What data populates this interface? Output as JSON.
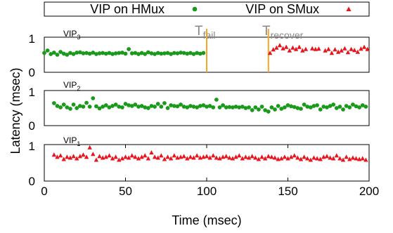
{
  "chart_data": {
    "type": "scatter",
    "xlabel": "Time (msec)",
    "ylabel": "Latency (msec)",
    "xlim": [
      0,
      200
    ],
    "ylim": [
      0,
      1
    ],
    "x_ticks": [
      "0",
      "50",
      "100",
      "150",
      "200"
    ],
    "y_ticks": [
      "0",
      "1"
    ],
    "legend": {
      "placement": "top",
      "entries": [
        {
          "label": "VIP on HMux",
          "marker": "circle",
          "color": "#1a9a1a"
        },
        {
          "label": "VIP on SMux",
          "marker": "triangle",
          "color": "#e8141e"
        }
      ]
    },
    "markers": {
      "t_fail": {
        "base": "T",
        "sub": "fail",
        "x": 100,
        "color": "#f5a623"
      },
      "t_recover": {
        "base": "T",
        "sub": "recover",
        "x": 138,
        "color": "#f5a623"
      }
    },
    "panels": [
      {
        "name_base": "VIP",
        "name_sub": "3",
        "series": [
          {
            "name": "VIP on HMux",
            "marker": "circle",
            "x": [
              0,
              2,
              4,
              6,
              8,
              10,
              12,
              14,
              16,
              18,
              20,
              22,
              24,
              26,
              28,
              30,
              32,
              34,
              36,
              38,
              40,
              42,
              44,
              46,
              48,
              50,
              52,
              54,
              56,
              58,
              60,
              62,
              64,
              66,
              68,
              70,
              72,
              74,
              76,
              78,
              80,
              82,
              84,
              86,
              88,
              90,
              92,
              94,
              96,
              98
            ],
            "y": [
              0.55,
              0.62,
              0.52,
              0.56,
              0.5,
              0.58,
              0.53,
              0.5,
              0.55,
              0.52,
              0.56,
              0.57,
              0.54,
              0.55,
              0.53,
              0.56,
              0.52,
              0.54,
              0.55,
              0.53,
              0.55,
              0.52,
              0.54,
              0.55,
              0.56,
              0.53,
              0.66,
              0.54,
              0.55,
              0.52,
              0.55,
              0.52,
              0.57,
              0.54,
              0.52,
              0.55,
              0.53,
              0.54,
              0.55,
              0.52,
              0.55,
              0.54,
              0.56,
              0.55,
              0.53,
              0.55,
              0.52,
              0.55,
              0.53,
              0.55
            ]
          },
          {
            "name": "VIP on SMux",
            "marker": "triangle",
            "x": [
              139,
              141,
              143,
              145,
              147,
              149,
              151,
              153,
              155,
              157,
              159,
              161,
              165,
              167,
              169,
              173,
              175,
              177,
              179,
              181,
              183,
              185,
              187,
              189,
              191,
              193,
              195,
              197,
              199
            ],
            "y": [
              0.55,
              0.65,
              0.7,
              0.77,
              0.68,
              0.72,
              0.62,
              0.7,
              0.66,
              0.72,
              0.62,
              0.66,
              0.68,
              0.66,
              0.67,
              0.62,
              0.66,
              0.55,
              0.65,
              0.58,
              0.62,
              0.68,
              0.57,
              0.66,
              0.63,
              0.58,
              0.67,
              0.72,
              0.66
            ]
          }
        ]
      },
      {
        "name_base": "VIP",
        "name_sub": "2",
        "series": [
          {
            "name": "VIP on HMux",
            "marker": "circle",
            "x": [
              6,
              8,
              10,
              12,
              14,
              16,
              18,
              20,
              22,
              24,
              26,
              28,
              30,
              32,
              34,
              36,
              38,
              40,
              42,
              44,
              46,
              48,
              50,
              52,
              54,
              56,
              58,
              60,
              62,
              64,
              66,
              68,
              70,
              72,
              74,
              76,
              78,
              80,
              82,
              84,
              86,
              88,
              90,
              92,
              94,
              96,
              98,
              100,
              102,
              104,
              106,
              108,
              110,
              112,
              114,
              116,
              118,
              120,
              122,
              124,
              126,
              128,
              130,
              132,
              134,
              136,
              138,
              140,
              142,
              144,
              146,
              148,
              150,
              152,
              154,
              156,
              158,
              160,
              162,
              164,
              166,
              168,
              170,
              172,
              174,
              176,
              178,
              180,
              182,
              184,
              186,
              188,
              190,
              192,
              194,
              196,
              198
            ],
            "y": [
              0.64,
              0.56,
              0.52,
              0.6,
              0.52,
              0.48,
              0.6,
              0.5,
              0.56,
              0.54,
              0.65,
              0.54,
              0.78,
              0.55,
              0.49,
              0.54,
              0.58,
              0.52,
              0.56,
              0.6,
              0.54,
              0.52,
              0.62,
              0.58,
              0.56,
              0.6,
              0.54,
              0.56,
              0.52,
              0.5,
              0.56,
              0.54,
              0.62,
              0.54,
              0.64,
              0.5,
              0.58,
              0.56,
              0.55,
              0.6,
              0.54,
              0.52,
              0.56,
              0.54,
              0.52,
              0.56,
              0.58,
              0.54,
              0.56,
              0.52,
              0.74,
              0.52,
              0.58,
              0.52,
              0.53,
              0.52,
              0.54,
              0.52,
              0.54,
              0.5,
              0.52,
              0.44,
              0.52,
              0.46,
              0.54,
              0.44,
              0.4,
              0.52,
              0.46,
              0.56,
              0.48,
              0.52,
              0.58,
              0.55,
              0.53,
              0.5,
              0.48,
              0.6,
              0.54,
              0.52,
              0.56,
              0.58,
              0.46,
              0.54,
              0.52,
              0.56,
              0.6,
              0.5,
              0.54,
              0.46,
              0.56,
              0.52,
              0.6,
              0.55,
              0.52,
              0.58,
              0.54
            ]
          }
        ]
      },
      {
        "name_base": "VIP",
        "name_sub": "1",
        "series": [
          {
            "name": "VIP on SMux",
            "marker": "triangle",
            "x": [
              6,
              8,
              10,
              12,
              14,
              16,
              18,
              20,
              22,
              24,
              26,
              28,
              30,
              32,
              34,
              36,
              38,
              40,
              42,
              44,
              46,
              48,
              50,
              52,
              54,
              56,
              58,
              60,
              62,
              64,
              66,
              68,
              70,
              72,
              74,
              76,
              78,
              80,
              82,
              84,
              86,
              88,
              90,
              92,
              94,
              96,
              98,
              100,
              102,
              104,
              106,
              108,
              110,
              112,
              114,
              116,
              118,
              120,
              122,
              124,
              126,
              128,
              130,
              132,
              134,
              136,
              138,
              140,
              142,
              144,
              146,
              148,
              150,
              152,
              154,
              156,
              158,
              160,
              162,
              164,
              166,
              168,
              170,
              172,
              174,
              176,
              178,
              180,
              182,
              184,
              186,
              188,
              190,
              192,
              194,
              196,
              198
            ],
            "y": [
              0.72,
              0.66,
              0.7,
              0.6,
              0.66,
              0.64,
              0.68,
              0.62,
              0.68,
              0.72,
              0.66,
              0.92,
              0.74,
              0.58,
              0.68,
              0.64,
              0.66,
              0.7,
              0.62,
              0.66,
              0.58,
              0.62,
              0.66,
              0.64,
              0.7,
              0.66,
              0.62,
              0.66,
              0.7,
              0.62,
              0.78,
              0.66,
              0.64,
              0.7,
              0.6,
              0.66,
              0.62,
              0.7,
              0.64,
              0.66,
              0.68,
              0.62,
              0.66,
              0.64,
              0.7,
              0.64,
              0.66,
              0.68,
              0.64,
              0.7,
              0.64,
              0.62,
              0.66,
              0.68,
              0.64,
              0.62,
              0.66,
              0.7,
              0.62,
              0.66,
              0.64,
              0.68,
              0.64,
              0.6,
              0.66,
              0.62,
              0.68,
              0.66,
              0.64,
              0.6,
              0.62,
              0.66,
              0.62,
              0.66,
              0.7,
              0.64,
              0.6,
              0.66,
              0.62,
              0.58,
              0.64,
              0.62,
              0.6,
              0.66,
              0.68,
              0.64,
              0.62,
              0.7,
              0.62,
              0.58,
              0.66,
              0.6,
              0.64,
              0.62,
              0.6,
              0.62,
              0.58
            ]
          }
        ]
      }
    ]
  }
}
